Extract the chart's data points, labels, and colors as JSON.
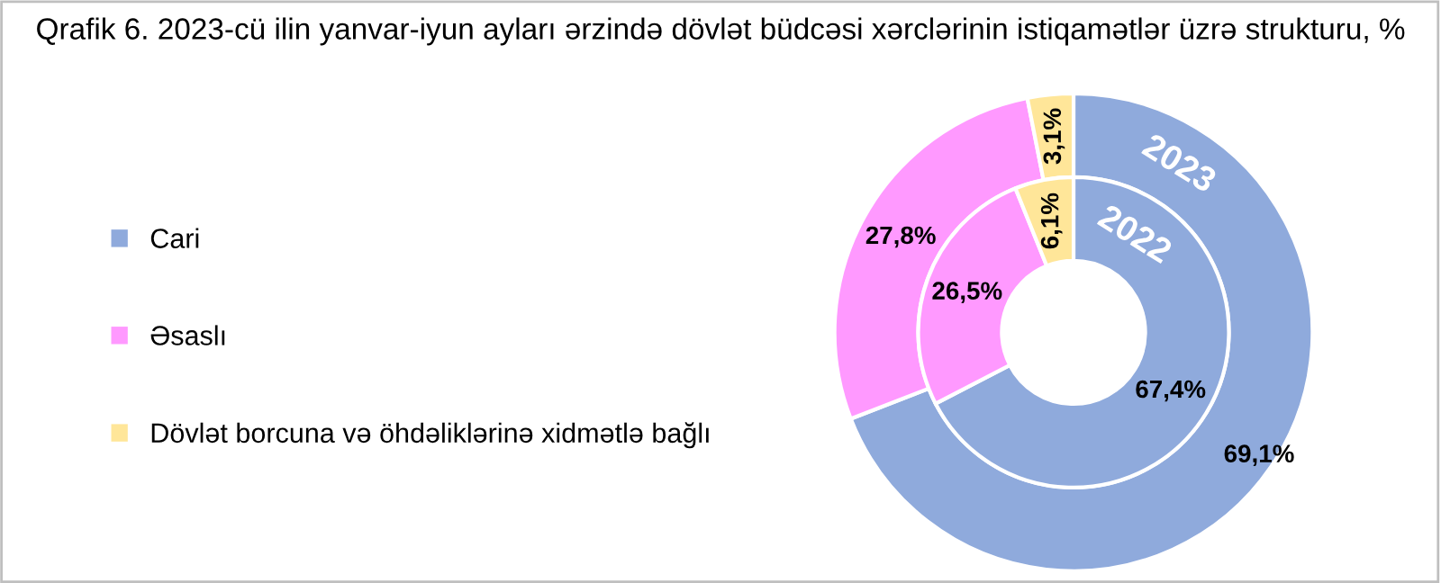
{
  "chart_data": {
    "type": "donut",
    "title": "Qrafik 6. 2023-cü ilin yanvar-iyun ayları ərzində dövlət büdcəsi xərclərinin istiqamətlər üzrə strukturu, %",
    "categories": [
      "Cari",
      "Əsaslı",
      "Dövlət borcuna və öhdəliklərinə xidmətlə bağlı"
    ],
    "colors": [
      "#8faadc",
      "#ff99ff",
      "#ffe699"
    ],
    "series": [
      {
        "name": "2023",
        "values": [
          69.1,
          27.8,
          3.1
        ],
        "value_labels": [
          "69,1%",
          "27,8%",
          "3,1%"
        ]
      },
      {
        "name": "2022",
        "values": [
          67.4,
          26.5,
          6.1
        ],
        "value_labels": [
          "67,4%",
          "26,5%",
          "6,1%"
        ]
      }
    ],
    "legend": "left"
  }
}
